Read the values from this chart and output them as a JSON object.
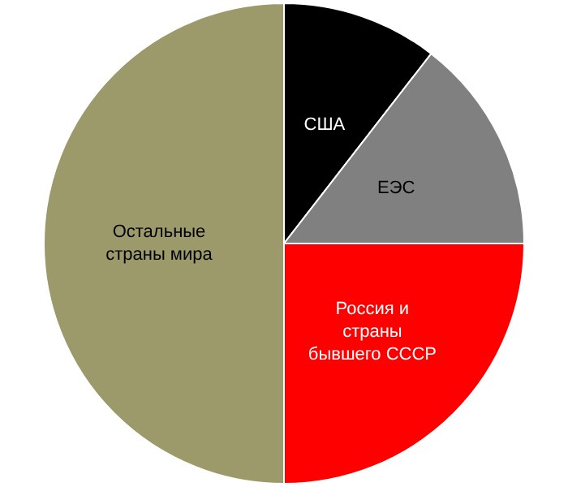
{
  "chart_data": {
    "type": "pie",
    "categories": [
      "США",
      "ЕЭС",
      "Россия и\nстраны\nбывшего СССР",
      "Остальные\nстраны мира"
    ],
    "values": [
      10.5,
      14.5,
      25,
      50
    ],
    "colors": [
      "#000000",
      "#808080",
      "#ff0000",
      "#9c9a6b"
    ],
    "legend": false
  }
}
